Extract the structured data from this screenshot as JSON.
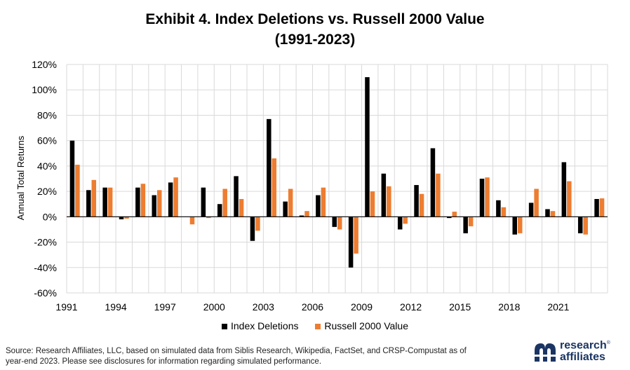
{
  "title_line1": "Exhibit 4. Index Deletions vs. Russell 2000 Value",
  "title_line2": "(1991-2023)",
  "source_line1": "Source: Research Affiliates, LLC, based on simulated data from Siblis Research, Wikipedia, FactSet, and CRSP-Compustat as of",
  "source_line2": "year-end 2023. Please see disclosures for information regarding simulated performance.",
  "logo": {
    "line1": "research",
    "line2": "affiliates",
    "reg": "®"
  },
  "colors": {
    "deletions": "#000000",
    "r2000v": "#ED7D31",
    "grid": "#d9d9d9"
  },
  "chart_data": {
    "type": "bar",
    "title": "Exhibit 4. Index Deletions vs. Russell 2000 Value (1991-2023)",
    "ylabel": "Annual Total Returns",
    "xlabel": "",
    "ylim": [
      -60,
      120
    ],
    "y_ticks": [
      "120%",
      "100%",
      "80%",
      "60%",
      "40%",
      "20%",
      "0%",
      "-20%",
      "-40%",
      "-60%"
    ],
    "y_tick_values": [
      120,
      100,
      80,
      60,
      40,
      20,
      0,
      -20,
      -40,
      -60
    ],
    "x_tick_labels": [
      "1991",
      "1994",
      "1997",
      "2000",
      "2003",
      "2006",
      "2009",
      "2012",
      "2015",
      "2018",
      "2021"
    ],
    "grid": true,
    "legend": "bottom",
    "categories": [
      "1991",
      "1992",
      "1993",
      "1994",
      "1995",
      "1996",
      "1997",
      "1998",
      "1999",
      "2000",
      "2001",
      "2002",
      "2003",
      "2004",
      "2005",
      "2006",
      "2007",
      "2008",
      "2009",
      "2010",
      "2011",
      "2012",
      "2013",
      "2014",
      "2015",
      "2016",
      "2017",
      "2018",
      "2019",
      "2020",
      "2021",
      "2022",
      "2023"
    ],
    "series": [
      {
        "name": "Index Deletions",
        "values": [
          60,
          21,
          23,
          -2,
          23,
          17,
          27,
          0,
          23,
          10,
          32,
          -19,
          77,
          12,
          1,
          17,
          -8,
          -40,
          110,
          34,
          -10,
          25,
          54,
          -1,
          -13,
          30,
          13,
          -14,
          11,
          6,
          43,
          -13,
          14
        ]
      },
      {
        "name": "Russell 2000 Value",
        "values": [
          41,
          29,
          23,
          -1.5,
          26,
          21,
          31,
          -6,
          -1,
          22,
          14,
          -11,
          46,
          22,
          4.5,
          23,
          -10,
          -29,
          20,
          24,
          -5.5,
          18,
          34,
          4,
          -7.5,
          31,
          7.5,
          -13,
          22,
          4.5,
          28,
          -14,
          14.5
        ]
      }
    ]
  }
}
